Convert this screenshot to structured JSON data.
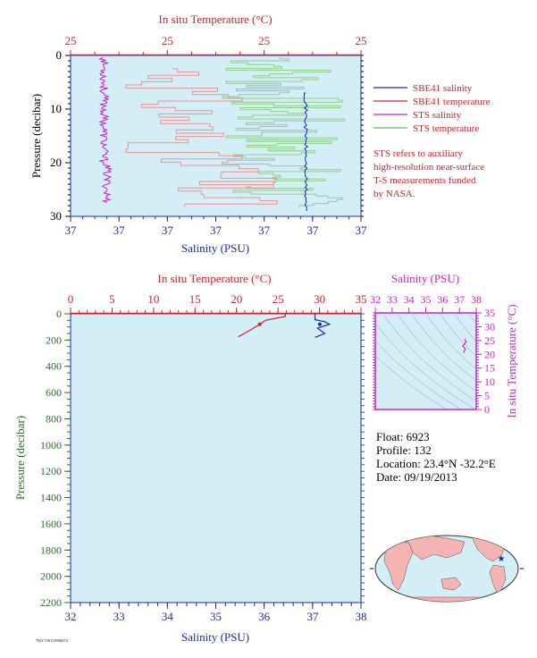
{
  "colors": {
    "plot_bg": "#d4eef8",
    "salinity": "#1a2aa8",
    "temperature": "#d4202a",
    "sts_salinity": "#cc22cc",
    "sts_temperature": "#55bb55",
    "sts_temperature_line": "#8fcf8a",
    "temp_line_light": "#f09090",
    "map_land": "#f4b4b4",
    "map_ocean": "#d4eef8"
  },
  "top_panel": {
    "top_axis_title": "In situ Temperature (°C)",
    "top_ticks": [
      "25",
      "25",
      "25",
      "25"
    ],
    "bottom_axis_title": "Salinity (PSU)",
    "bottom_ticks": [
      "37",
      "37",
      "37",
      "37",
      "37",
      "37",
      "37"
    ],
    "y_axis_title": "Pressure (decibar)",
    "y_ticks": [
      "0",
      "10",
      "20",
      "30"
    ],
    "legend": [
      {
        "label": "SBE41 salinity",
        "color": "#1a2aa8"
      },
      {
        "label": "SBE41 temperature",
        "color": "#d4202a"
      },
      {
        "label": "STS salinity",
        "color": "#cc22cc"
      },
      {
        "label": "STS temperature",
        "color": "#55bb55"
      }
    ],
    "note": [
      "STS refers to auxiliary",
      "high-resolution near-surface",
      "T-S measurements funded",
      "by NASA."
    ]
  },
  "bottom_panel": {
    "top_axis_title": "In situ Temperature (°C)",
    "top_ticks": [
      "0",
      "5",
      "10",
      "15",
      "20",
      "25",
      "30",
      "35"
    ],
    "bottom_axis_title": "Salinity (PSU)",
    "bottom_ticks": [
      "32",
      "33",
      "34",
      "35",
      "36",
      "37",
      "38"
    ],
    "y_axis_title": "Pressure (decibar)",
    "y_ticks": [
      "0",
      "200",
      "400",
      "600",
      "800",
      "1000",
      "1200",
      "1400",
      "1600",
      "1800",
      "2000",
      "2200"
    ]
  },
  "ts_inset": {
    "top_axis_title": "Salinity (PSU)",
    "top_ticks": [
      "32",
      "33",
      "34",
      "35",
      "36",
      "37",
      "38"
    ],
    "right_axis_title": "In situ Temperature (°C)",
    "right_ticks": [
      "35",
      "30",
      "25",
      "20",
      "15",
      "10",
      "5",
      "0"
    ]
  },
  "float_info": {
    "float": "Float:  6923",
    "profile": "Profile:  132",
    "location": "Location:  23.4°N  -32.2°E",
    "date": "Date:  09/19/2013"
  },
  "footer_code": "7923 7/2013 R966574",
  "chart_data": [
    {
      "type": "line",
      "title": "",
      "xlabel": "Salinity (PSU)",
      "ylabel": "Pressure (decibar)",
      "secondary_xlabel": "In situ Temperature (°C)",
      "ylim": [
        30,
        0
      ],
      "y_inverted": true,
      "series": [
        {
          "name": "SBE41 salinity",
          "x_fraction": [
            0.81,
            0.81,
            0.81,
            0.81
          ],
          "y": [
            0.5,
            10,
            20,
            29
          ]
        },
        {
          "name": "SBE41 temperature",
          "y": [
            0.1,
            0.1
          ]
        },
        {
          "name": "STS salinity",
          "x_fraction": [
            0.12,
            0.13,
            0.12,
            0.14,
            0.13,
            0.15,
            0.14,
            0.14
          ],
          "y": [
            0.5,
            2,
            5,
            10,
            15,
            20,
            25,
            28
          ]
        },
        {
          "name": "STS temperature",
          "x_fraction_range": [
            0.45,
            0.97
          ],
          "y": [
            0.5,
            28
          ]
        }
      ]
    },
    {
      "type": "line",
      "title": "",
      "xlabel": "Salinity (PSU)",
      "ylabel": "Pressure (decibar)",
      "secondary_xlabel": "In situ Temperature (°C)",
      "xlim": [
        32,
        38
      ],
      "secondary_xlim": [
        0,
        35
      ],
      "ylim": [
        2200,
        0
      ],
      "y_inverted": true,
      "series": [
        {
          "name": "Salinity",
          "x": [
            37.05,
            37.05,
            37.25,
            37.35,
            37.1,
            37.25,
            37.05
          ],
          "y": [
            0,
            45,
            60,
            80,
            110,
            150,
            180
          ]
        },
        {
          "name": "Temperature",
          "x": [
            25.9,
            25.9,
            23.5,
            22.8,
            21.5,
            20.2
          ],
          "y": [
            0,
            20,
            50,
            80,
            130,
            175
          ]
        }
      ]
    },
    {
      "type": "scatter",
      "title": "",
      "xlabel": "Salinity (PSU)",
      "ylabel": "In situ Temperature (°C)",
      "xlim": [
        32,
        38
      ],
      "ylim": [
        0,
        35
      ],
      "series": [
        {
          "name": "T-S",
          "x": [
            37.3,
            37.4,
            37.2,
            37.35,
            37.25
          ],
          "y": [
            25.5,
            24.5,
            23,
            22,
            20.5
          ]
        }
      ]
    }
  ]
}
